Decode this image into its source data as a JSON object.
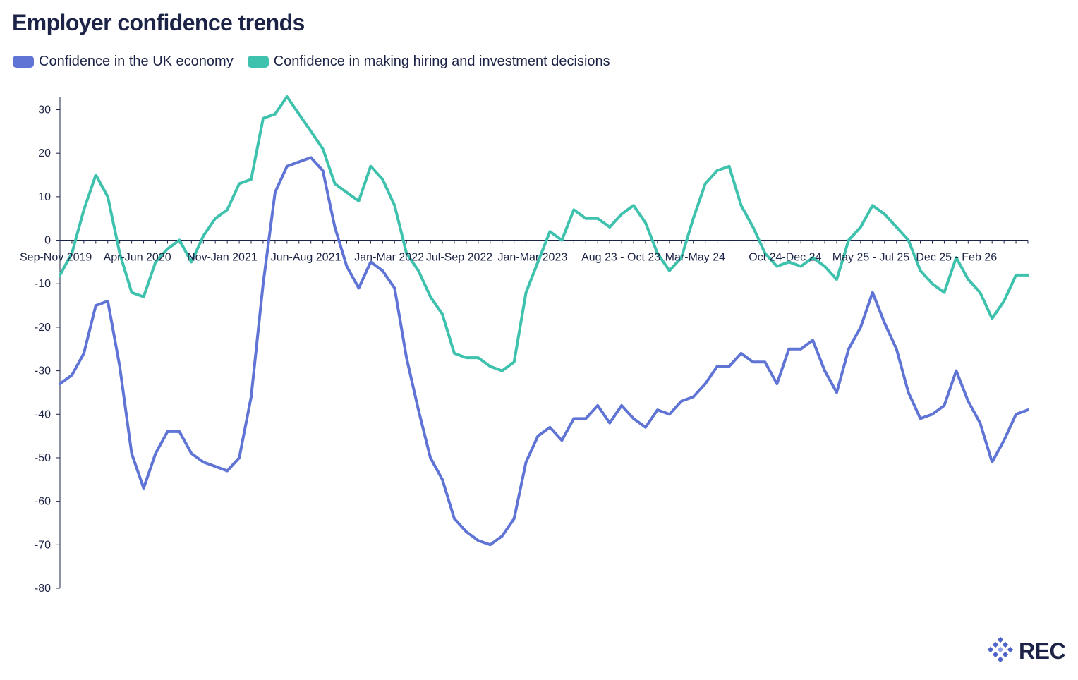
{
  "chart_data": {
    "type": "line",
    "title": "Employer confidence trends",
    "xlabel": "",
    "ylabel": "",
    "ylim": [
      -80,
      33
    ],
    "yticks": [
      30,
      20,
      10,
      0,
      -10,
      -20,
      -30,
      -40,
      -50,
      -60,
      -70,
      -80
    ],
    "xtick_labels": [
      {
        "index": 0,
        "label": "Sep-Nov 2019"
      },
      {
        "index": 7,
        "label": "Apr-Jun 2020"
      },
      {
        "index": 14,
        "label": "Nov-Jan 2021"
      },
      {
        "index": 21,
        "label": "Jun-Aug 2021"
      },
      {
        "index": 28,
        "label": "Jan-Mar 2022"
      },
      {
        "index": 34,
        "label": "Jul-Sep 2022"
      },
      {
        "index": 40,
        "label": "Jan-Mar 2023"
      },
      {
        "index": 47,
        "label": "Aug 23 - Oct 23"
      },
      {
        "index": 54,
        "label": "Mar-May 24"
      },
      {
        "index": 61,
        "label": "Oct 24-Dec 24"
      },
      {
        "index": 68,
        "label": "May 25 - Jul 25"
      },
      {
        "index": 75,
        "label": "Dec 25 - Feb 26"
      }
    ],
    "legend_position": "top-left",
    "grid": false,
    "series": [
      {
        "name": "Confidence in the UK economy",
        "color": "#5f74d4",
        "values": [
          -33,
          -31,
          -26,
          -15,
          -14,
          -29,
          -49,
          -57,
          -49,
          -44,
          -44,
          -49,
          -51,
          -52,
          -53,
          -50,
          -36,
          -10,
          11,
          17,
          18,
          19,
          16,
          3,
          -6,
          -11,
          -5,
          -7,
          -11,
          -27,
          -39,
          -50,
          -55,
          -64,
          -67,
          -69,
          -70,
          -68,
          -64,
          -51,
          -45,
          -43,
          -46,
          -41,
          -41,
          -38,
          -42,
          -38,
          -41,
          -43,
          -39,
          -40,
          -37,
          -36,
          -33,
          -29,
          -29,
          -26,
          -28,
          -28,
          -33,
          -25,
          -25,
          -23,
          -30,
          -35,
          -25,
          -20,
          -12,
          -19,
          -25,
          -35,
          -41,
          -40,
          -38,
          -30,
          -37,
          -42,
          -51,
          -46,
          -40,
          -39
        ]
      },
      {
        "name": "Confidence in making hiring and investment decisions",
        "color": "#3ec1ad",
        "values": [
          -8,
          -3,
          7,
          15,
          10,
          -3,
          -12,
          -13,
          -5,
          -2,
          0,
          -5,
          1,
          5,
          7,
          13,
          14,
          28,
          29,
          33,
          29,
          25,
          21,
          13,
          11,
          9,
          17,
          14,
          8,
          -3,
          -7,
          -13,
          -17,
          -26,
          -27,
          -27,
          -29,
          -30,
          -28,
          -12,
          -5,
          2,
          0,
          7,
          5,
          5,
          3,
          6,
          8,
          4,
          -3,
          -7,
          -4,
          5,
          13,
          16,
          17,
          8,
          3,
          -3,
          -6,
          -5,
          -6,
          -4,
          -6,
          -9,
          0,
          3,
          8,
          6,
          3,
          0,
          -7,
          -10,
          -12,
          -4,
          -9,
          -12,
          -18,
          -14,
          -8,
          -8
        ]
      }
    ]
  },
  "logo": {
    "text": "REC",
    "color": "#1c2346"
  }
}
